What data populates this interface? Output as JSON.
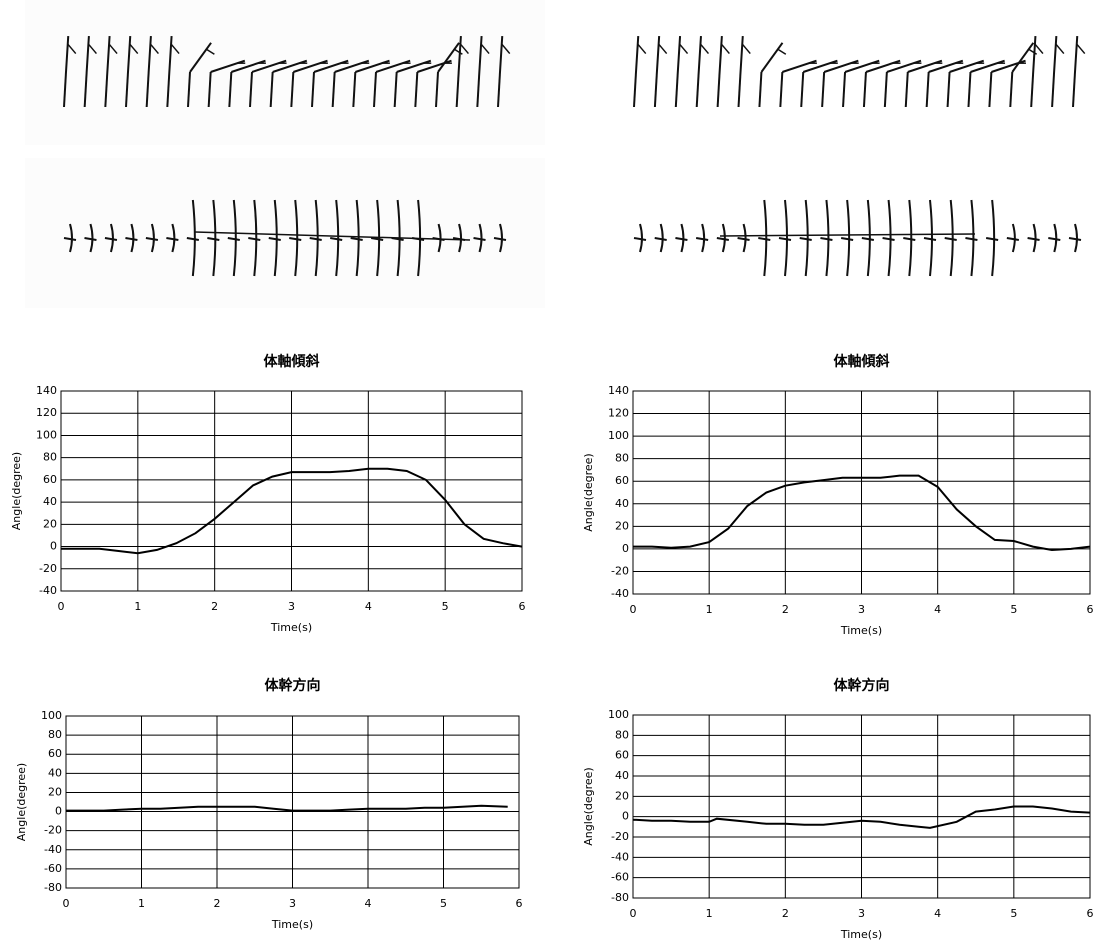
{
  "chart_data": [
    {
      "type": "line",
      "title": "体軸傾斜",
      "xlabel": "Time(s)",
      "ylabel": "Angle(degree)",
      "x": [
        0,
        0.25,
        0.5,
        0.75,
        1,
        1.25,
        1.5,
        1.75,
        2,
        2.25,
        2.5,
        2.75,
        3,
        3.25,
        3.5,
        3.75,
        4,
        4.25,
        4.5,
        4.75,
        5,
        5.25,
        5.5,
        5.75,
        6
      ],
      "values": [
        -2,
        -2,
        -2,
        -4,
        -6,
        -3,
        3,
        12,
        25,
        40,
        55,
        63,
        67,
        67,
        67,
        68,
        70,
        70,
        68,
        60,
        42,
        20,
        7,
        3,
        0
      ],
      "color": "#000000",
      "xlim": [
        0,
        6
      ],
      "xticks": [
        0,
        1,
        2,
        3,
        4,
        5,
        6
      ],
      "ylim": [
        -40,
        140
      ],
      "yticks": [
        -40,
        -20,
        0,
        20,
        40,
        60,
        80,
        100,
        120,
        140
      ],
      "grid": true
    },
    {
      "type": "line",
      "title": "体軸傾斜",
      "xlabel": "Time(s)",
      "ylabel": "Angle(degree)",
      "x": [
        0,
        0.25,
        0.5,
        0.75,
        1,
        1.25,
        1.5,
        1.75,
        2,
        2.25,
        2.5,
        2.75,
        3,
        3.25,
        3.5,
        3.75,
        4,
        4.25,
        4.5,
        4.75,
        5,
        5.25,
        5.5,
        5.75,
        6
      ],
      "values": [
        2,
        2,
        1,
        2,
        6,
        18,
        38,
        50,
        56,
        59,
        61,
        63,
        63,
        63,
        65,
        65,
        55,
        35,
        20,
        8,
        7,
        2,
        -1,
        0,
        2
      ],
      "color": "#000000",
      "xlim": [
        0,
        6
      ],
      "xticks": [
        0,
        1,
        2,
        3,
        4,
        5,
        6
      ],
      "ylim": [
        -40,
        140
      ],
      "yticks": [
        -40,
        -20,
        0,
        20,
        40,
        60,
        80,
        100,
        120,
        140
      ],
      "grid": true
    },
    {
      "type": "line",
      "title": "体幹方向",
      "xlabel": "Time(s)",
      "ylabel": "Angle(degree)",
      "x": [
        0,
        0.25,
        0.5,
        0.75,
        1,
        1.25,
        1.5,
        1.75,
        2,
        2.25,
        2.5,
        2.75,
        3,
        3.25,
        3.5,
        3.75,
        4,
        4.25,
        4.5,
        4.75,
        5,
        5.25,
        5.5,
        5.85
      ],
      "values": [
        1,
        1,
        1,
        2,
        3,
        3,
        4,
        5,
        5,
        5,
        5,
        3,
        1,
        1,
        1,
        2,
        3,
        3,
        3,
        4,
        4,
        5,
        6,
        5
      ],
      "color": "#000000",
      "xlim": [
        0,
        6
      ],
      "xticks": [
        0,
        1,
        2,
        3,
        4,
        5,
        6
      ],
      "ylim": [
        -80,
        100
      ],
      "yticks": [
        -80,
        -60,
        -40,
        -20,
        0,
        20,
        40,
        60,
        80,
        100
      ],
      "grid": true
    },
    {
      "type": "line",
      "title": "体幹方向",
      "xlabel": "Time(s)",
      "ylabel": "Angle(degree)",
      "x": [
        0,
        0.25,
        0.5,
        0.75,
        1,
        1.1,
        1.5,
        1.75,
        2,
        2.25,
        2.5,
        2.75,
        3,
        3.25,
        3.5,
        3.75,
        3.9,
        4.25,
        4.5,
        4.75,
        5,
        5.25,
        5.5,
        5.75,
        6
      ],
      "values": [
        -3,
        -4,
        -4,
        -5,
        -5,
        -2,
        -5,
        -7,
        -7,
        -8,
        -8,
        -6,
        -4,
        -5,
        -8,
        -10,
        -11,
        -5,
        5,
        7,
        10,
        10,
        8,
        5,
        4
      ],
      "color": "#000000",
      "xlim": [
        0,
        6
      ],
      "xticks": [
        0,
        1,
        2,
        3,
        4,
        5,
        6
      ],
      "ylim": [
        -80,
        100
      ],
      "yticks": [
        -80,
        -60,
        -40,
        -20,
        0,
        20,
        40,
        60,
        80,
        100
      ],
      "grid": true
    }
  ]
}
